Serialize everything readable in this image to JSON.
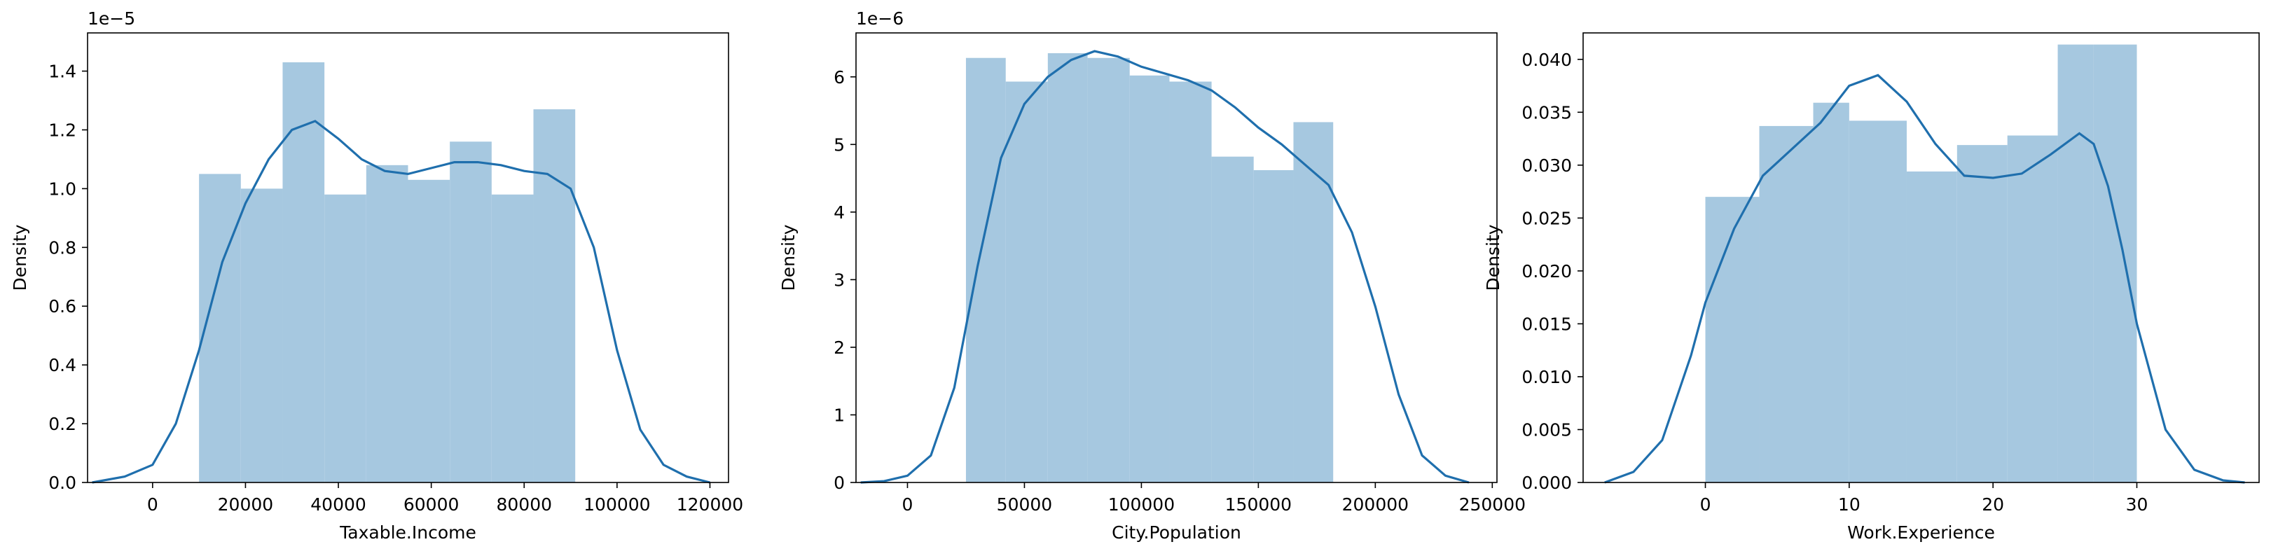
{
  "chart_data": [
    {
      "type": "histogram+kde",
      "xlabel": "Taxable.Income",
      "ylabel": "Density",
      "y_offset_label": "1e−5",
      "y_scale": 1e-05,
      "xlim": [
        -14000,
        124000
      ],
      "ylim": [
        0,
        1.53
      ],
      "xticks": [
        0,
        20000,
        40000,
        60000,
        80000,
        100000,
        120000
      ],
      "xtick_labels": [
        "0",
        "20000",
        "40000",
        "60000",
        "80000",
        "100000",
        "120000"
      ],
      "yticks": [
        0,
        0.2,
        0.4,
        0.6,
        0.8,
        1.0,
        1.2,
        1.4
      ],
      "ytick_labels": [
        "0.0",
        "0.2",
        "0.4",
        "0.6",
        "0.8",
        "1.0",
        "1.2",
        "1.4"
      ],
      "bins": [
        10000,
        19000,
        28000,
        37000,
        46000,
        55000,
        64000,
        73000,
        82000,
        91000,
        100000
      ],
      "bar_values": [
        1.05,
        1.0,
        1.43,
        0.98,
        1.08,
        1.03,
        1.16,
        0.98,
        1.27
      ],
      "kde": {
        "x": [
          -13000,
          -6000,
          0,
          5000,
          10000,
          15000,
          20000,
          25000,
          30000,
          35000,
          40000,
          45000,
          50000,
          55000,
          60000,
          65000,
          70000,
          75000,
          80000,
          85000,
          90000,
          95000,
          100000,
          105000,
          110000,
          115000,
          120000
        ],
        "y": [
          0.0,
          0.02,
          0.06,
          0.2,
          0.45,
          0.75,
          0.95,
          1.1,
          1.2,
          1.23,
          1.17,
          1.1,
          1.06,
          1.05,
          1.07,
          1.09,
          1.09,
          1.08,
          1.06,
          1.05,
          1.0,
          0.8,
          0.45,
          0.18,
          0.06,
          0.02,
          0.0
        ]
      }
    },
    {
      "type": "histogram+kde",
      "xlabel": "City.Population",
      "ylabel": "Density",
      "y_offset_label": "1e−6",
      "y_scale": 1e-06,
      "xlim": [
        -22000,
        252000
      ],
      "ylim": [
        0,
        6.65
      ],
      "xticks": [
        0,
        50000,
        100000,
        150000,
        200000,
        250000
      ],
      "xtick_labels": [
        "0",
        "50000",
        "100000",
        "150000",
        "200000",
        "250000"
      ],
      "yticks": [
        0,
        1,
        2,
        3,
        4,
        5,
        6
      ],
      "ytick_labels": [
        "0",
        "1",
        "2",
        "3",
        "4",
        "5",
        "6"
      ],
      "bins": [
        25000,
        42000,
        60000,
        77000,
        95000,
        112000,
        130000,
        148000,
        165000,
        182000,
        200000
      ],
      "bar_values": [
        6.28,
        5.93,
        6.35,
        6.28,
        6.02,
        5.93,
        4.82,
        4.62,
        5.33
      ],
      "kde": {
        "x": [
          -20000,
          -10000,
          0,
          10000,
          20000,
          30000,
          40000,
          50000,
          60000,
          70000,
          80000,
          90000,
          100000,
          110000,
          120000,
          130000,
          140000,
          150000,
          160000,
          170000,
          180000,
          190000,
          200000,
          210000,
          220000,
          230000,
          240000
        ],
        "y": [
          0.0,
          0.02,
          0.1,
          0.4,
          1.4,
          3.2,
          4.8,
          5.6,
          6.0,
          6.25,
          6.38,
          6.3,
          6.15,
          6.05,
          5.95,
          5.8,
          5.55,
          5.25,
          5.0,
          4.7,
          4.4,
          3.7,
          2.6,
          1.3,
          0.4,
          0.1,
          0.0
        ]
      }
    },
    {
      "type": "histogram+kde",
      "xlabel": "Work.Experience",
      "ylabel": "Density",
      "xlim": [
        -8.5,
        38.5
      ],
      "ylim": [
        0,
        0.0425
      ],
      "xticks": [
        0,
        10,
        20,
        30
      ],
      "xtick_labels": [
        "0",
        "10",
        "20",
        "30"
      ],
      "yticks": [
        0,
        0.005,
        0.01,
        0.015,
        0.02,
        0.025,
        0.03,
        0.035,
        0.04
      ],
      "ytick_labels": [
        "0.000",
        "0.005",
        "0.010",
        "0.015",
        "0.020",
        "0.025",
        "0.030",
        "0.035",
        "0.040"
      ],
      "bins": [
        0,
        3.75,
        7.5,
        10,
        14,
        17.5,
        21,
        24.5,
        27,
        30
      ],
      "bar_values": [
        0.027,
        0.0337,
        0.0359,
        0.0342,
        0.0294,
        0.0319,
        0.0328,
        0.0414,
        0.0414
      ],
      "kde": {
        "x": [
          -7,
          -5,
          -3,
          -1,
          0,
          2,
          4,
          6,
          8,
          10,
          12,
          14,
          16,
          18,
          20,
          22,
          24,
          26,
          27,
          28,
          29,
          30,
          32,
          34,
          36,
          37.5
        ],
        "y": [
          0.0,
          0.001,
          0.004,
          0.012,
          0.017,
          0.024,
          0.029,
          0.0315,
          0.034,
          0.0375,
          0.0385,
          0.036,
          0.032,
          0.029,
          0.0288,
          0.0292,
          0.031,
          0.033,
          0.032,
          0.028,
          0.022,
          0.015,
          0.005,
          0.0012,
          0.0002,
          0.0
        ]
      }
    }
  ]
}
